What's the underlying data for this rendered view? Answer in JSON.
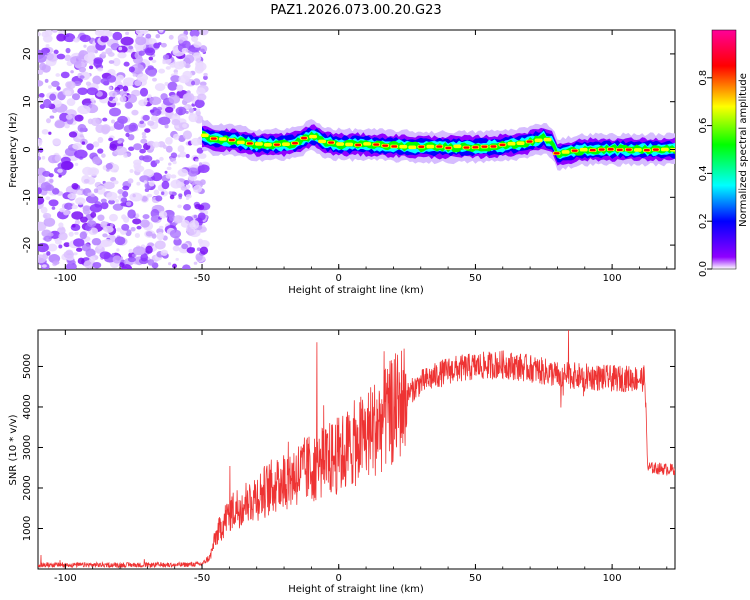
{
  "chart_data": [
    {
      "type": "heatmap",
      "title": "PAZ1.2026.073.00.20.G23",
      "xlabel": "Height of straight line (km)",
      "ylabel": "Frequency (Hz)",
      "xlim": [
        -110,
        123
      ],
      "ylim": [
        -25,
        25
      ],
      "xticks": [
        -100,
        -50,
        0,
        50,
        100
      ],
      "yticks": [
        -20,
        -10,
        0,
        10,
        20
      ],
      "noise_region_x": [
        -110,
        -50
      ],
      "ridge": {
        "x": [
          -50,
          -45,
          -40,
          -35,
          -30,
          -25,
          -20,
          -15,
          -10,
          -8,
          -5,
          0,
          10,
          20,
          30,
          40,
          50,
          60,
          70,
          75,
          78,
          80,
          85,
          90,
          100,
          110,
          123
        ],
        "y": [
          3,
          2,
          2,
          1.5,
          1,
          1,
          1,
          1.5,
          3,
          2.5,
          1.5,
          1,
          1,
          0.8,
          0.5,
          0.5,
          0.5,
          0.8,
          1.5,
          2.5,
          1.5,
          -1,
          -0.5,
          0,
          0,
          0,
          0
        ]
      },
      "colorbar": {
        "label": "Normalized spectral amplitude",
        "range": [
          0,
          1
        ],
        "ticks": [
          "0.0",
          "0.2",
          "0.4",
          "0.6",
          "0.8"
        ],
        "colors": [
          "#ffffff",
          "#8f00ff",
          "#0000ff",
          "#00ffff",
          "#00ff00",
          "#ffff00",
          "#ff0000",
          "#ff0099"
        ]
      }
    },
    {
      "type": "line",
      "xlabel": "Height of straight line (km)",
      "ylabel": "SNR (10 * v/v)",
      "xlim": [
        -110,
        123
      ],
      "ylim": [
        0,
        5900
      ],
      "xticks": [
        -100,
        -50,
        0,
        50,
        100
      ],
      "yticks": [
        1000,
        2000,
        3000,
        4000,
        5000
      ],
      "color": "#ee3333",
      "envelope": {
        "x": [
          -110,
          -60,
          -50,
          -47,
          -45,
          -40,
          -35,
          -30,
          -20,
          -10,
          0,
          10,
          20,
          25,
          30,
          40,
          50,
          60,
          70,
          80,
          90,
          100,
          110,
          112,
          113,
          123
        ],
        "y": [
          100,
          100,
          120,
          300,
          800,
          1400,
          1600,
          1800,
          2200,
          2500,
          2800,
          3300,
          3900,
          4300,
          4600,
          4900,
          5000,
          5050,
          4950,
          4800,
          4750,
          4700,
          4700,
          4700,
          2500,
          2450
        ]
      },
      "spikes": [
        {
          "x": -8,
          "y": 5600
        },
        {
          "x": 84,
          "y": 5900
        }
      ]
    }
  ]
}
